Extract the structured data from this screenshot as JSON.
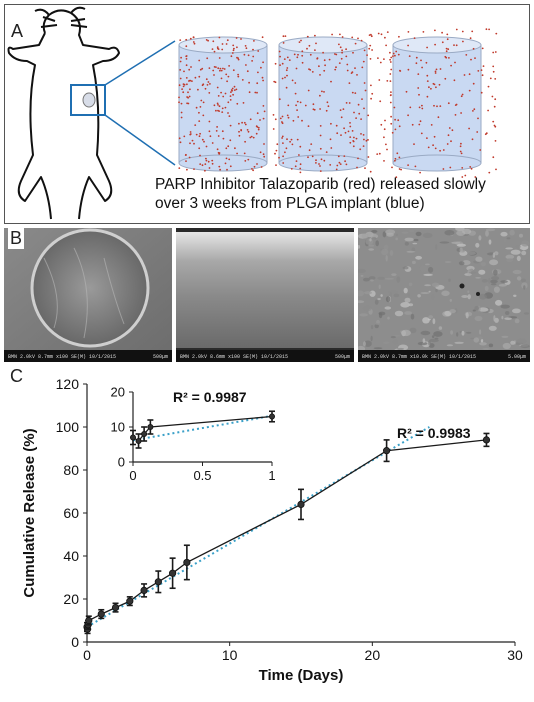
{
  "panel_a": {
    "label": "A",
    "caption_line1": "PARP Inhibitor Talazoparib (red) released slowly",
    "caption_line2": "over 3 weeks from PLGA implant (blue)",
    "colors": {
      "implant": "#c9d9f2",
      "drug": "#c0392b",
      "callout": "#1f6fb2"
    }
  },
  "panel_b": {
    "label": "B",
    "images": [
      {
        "meta": "BMN 2.0kV 8.7mm x100 SE(M) 10/1/2015",
        "scale": "500μm"
      },
      {
        "meta": "BMN 2.0kV 8.6mm x100 SE(M) 10/1/2015",
        "scale": "500μm"
      },
      {
        "meta": "BMN 2.0kV 8.7mm x10.0k SE(M) 10/1/2015",
        "scale": "5.00μm"
      }
    ]
  },
  "panel_c": {
    "label": "C",
    "chart_data": [
      {
        "type": "line",
        "xlabel": "Time (Days)",
        "ylabel": "Cumulative Release (%)",
        "xlim": [
          0,
          30
        ],
        "ylim": [
          0,
          120
        ],
        "xticks": [
          "0",
          "10",
          "20",
          "30"
        ],
        "yticks": [
          "0",
          "20",
          "40",
          "60",
          "80",
          "100",
          "120"
        ],
        "grid": false,
        "series": [
          {
            "x": [
              0,
              0.04,
              0.08,
              0.125,
              1,
              2,
              3,
              4,
              5,
              6,
              7,
              15,
              21,
              28
            ],
            "y": [
              7,
              6,
              8,
              10,
              13,
              16,
              19,
              24,
              28,
              32,
              37,
              64,
              89,
              94
            ],
            "err": [
              2,
              2,
              2,
              2,
              2,
              2,
              2,
              3,
              5,
              7,
              8,
              7,
              5,
              3
            ]
          }
        ],
        "trendline": {
          "x": [
            0,
            24
          ],
          "y": [
            7,
            100
          ]
        },
        "annotation": "R² = 0.9983"
      },
      {
        "type": "line",
        "xlim": [
          0,
          1
        ],
        "ylim": [
          0,
          20
        ],
        "xticks": [
          "0",
          "0.5",
          "1"
        ],
        "yticks": [
          "0",
          "10",
          "20"
        ],
        "grid": false,
        "series": [
          {
            "x": [
              0,
              0.04,
              0.08,
              0.125,
              1
            ],
            "y": [
              7,
              6,
              8,
              10,
              13
            ],
            "err": [
              2,
              2,
              2,
              2,
              1.5
            ]
          }
        ],
        "trendline": {
          "x": [
            0,
            1
          ],
          "y": [
            6.2,
            13.2
          ]
        },
        "annotation": "R² = 0.9987"
      }
    ],
    "colors": {
      "data": "#1a1a1a",
      "trend": "#3aa0c8"
    }
  }
}
